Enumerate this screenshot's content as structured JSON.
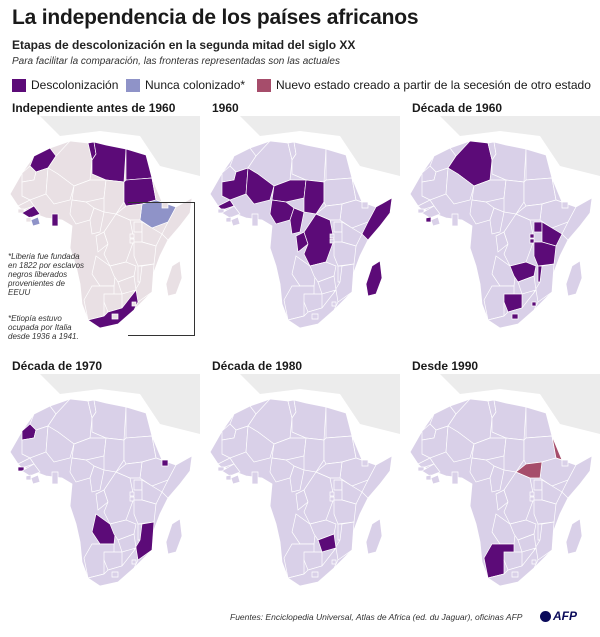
{
  "title": "La independencia de los países africanos",
  "subtitle": "Etapas de descolonización en la segunda mitad del siglo XX",
  "note": "Para facilitar la comparación, las fronteras representadas son las actuales",
  "legend": [
    {
      "label": "Descolonización",
      "color": "#5c0b78"
    },
    {
      "label": "Nunca colonizado*",
      "color": "#8f93c8"
    },
    {
      "label": "Nuevo estado creado a partir de la secesión de otro estado",
      "color": "#a64d6b"
    }
  ],
  "colors": {
    "base_independent": "#e9e0e4",
    "base_decolonized": "#d9d0e8",
    "map_shadow": "#ececec",
    "border": "#ffffff",
    "decolonized": "#5c0b78",
    "never_colonized": "#8f93c8",
    "secession": "#a64d6b"
  },
  "panels": [
    {
      "title": "Independiente antes de 1960",
      "highlights": [
        "Marruecos",
        "Túnez",
        "Libia",
        "Egipto",
        "Sudán",
        "Ghana",
        "Guinea",
        "Sudáfrica",
        "Liberia",
        "Etiopía"
      ]
    },
    {
      "title": "1960",
      "highlights": [
        "Mauritania",
        "Mali",
        "Níger",
        "Chad",
        "Senegal",
        "Nigeria",
        "Camerún",
        "Congo",
        "RD Congo",
        "Somalia",
        "Madagascar"
      ]
    },
    {
      "title": "Década de 1960",
      "highlights": [
        "Argelia",
        "Sierra Leona",
        "Uganda",
        "Kenia",
        "Tanzania",
        "Ruanda",
        "Burundi",
        "Zambia",
        "Malaui",
        "Botsuana",
        "Lesoto",
        "Suazilandia"
      ]
    },
    {
      "title": "Década de 1970",
      "highlights": [
        "Sahara Occidental",
        "Guinea-Bisáu",
        "Angola",
        "Mozambique",
        "Yibuti"
      ]
    },
    {
      "title": "Década de 1980",
      "highlights": [
        "Zimbabue"
      ]
    },
    {
      "title": "Desde 1990",
      "highlights": [
        "Namibia",
        "Eritrea",
        "Sudán del Sur"
      ]
    }
  ],
  "footnotes": {
    "liberia": "*Liberia fue fundada en 1822 por esclavos negros liberados provenientes de EEUU",
    "ethiopia": "*Etiopía estuvo ocupada por Italia desde 1936 a 1941."
  },
  "source": "Fuentes: Enciclopedia Universal, Atlas de Africa (ed. du Jaguar), oficinas AFP",
  "logo": "AFP"
}
